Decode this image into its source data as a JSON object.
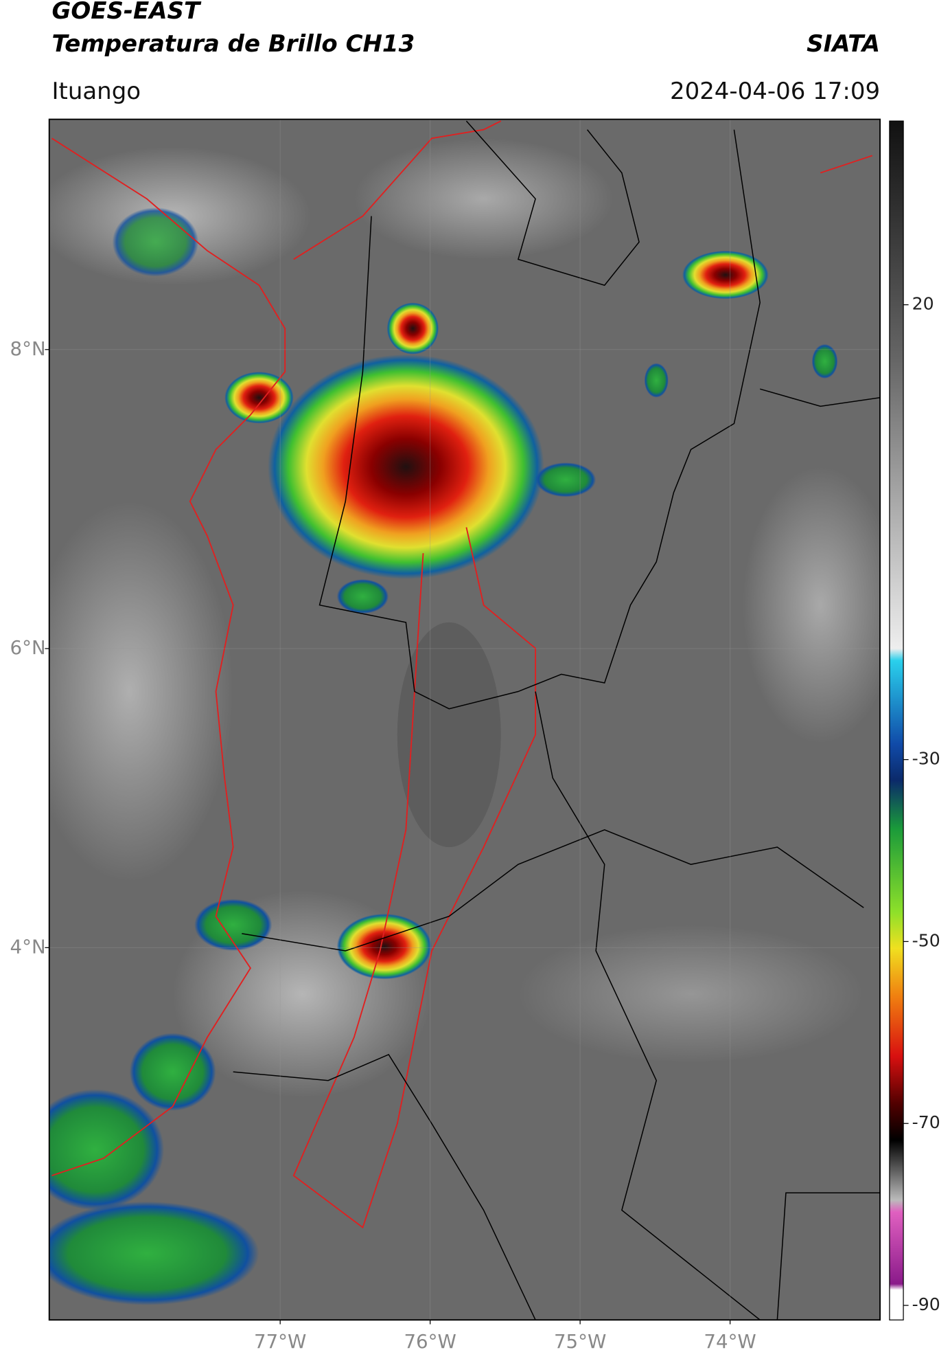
{
  "header": {
    "title_line1": "GOES-EAST",
    "title_line2": "Temperatura de Brillo CH13",
    "org": "SIATA",
    "location": "Ituango",
    "datetime": "2024-04-06 17:09"
  },
  "map": {
    "latlim": [
      1.51,
      9.54
    ],
    "lonlim": [
      -78.54,
      -73.0
    ],
    "lat_ticks": [
      {
        "value": 8,
        "label": "8°N"
      },
      {
        "value": 6,
        "label": "6°N"
      },
      {
        "value": 4,
        "label": "4°N"
      }
    ],
    "lon_ticks": [
      {
        "value": -77,
        "label": "77°W"
      },
      {
        "value": -76,
        "label": "76°W"
      },
      {
        "value": -75,
        "label": "75°W"
      },
      {
        "value": -74,
        "label": "74°W"
      }
    ]
  },
  "colorbar": {
    "clim": [
      -91.6,
      40.2
    ],
    "ticks": [
      20,
      -30,
      -50,
      -70,
      -90
    ]
  }
}
